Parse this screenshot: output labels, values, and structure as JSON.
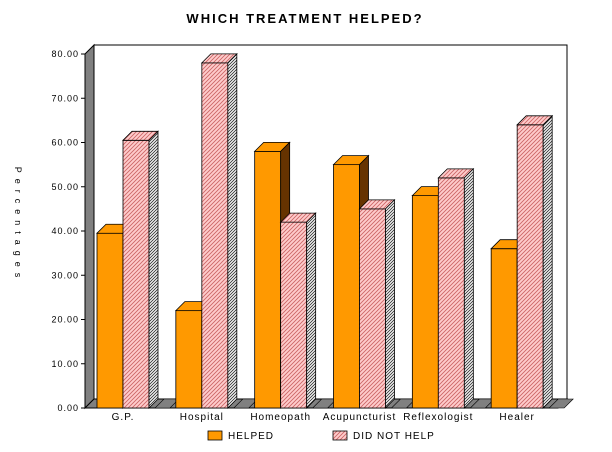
{
  "chart_data": {
    "type": "bar",
    "title": "WHICH TREATMENT HELPED?",
    "ylabel": "Percentages",
    "xlabel": "",
    "categories": [
      "G.P.",
      "Hospital",
      "Homeopath",
      "Acupuncturist",
      "Reflexologist",
      "Healer"
    ],
    "yticks": [
      "0.00",
      "10.00",
      "20.00",
      "30.00",
      "40.00",
      "50.00",
      "60.00",
      "70.00",
      "80.00"
    ],
    "ylim": [
      0,
      80
    ],
    "grid": false,
    "legend_position": "bottom",
    "series": [
      {
        "name": "HELPED",
        "values": [
          39.5,
          22,
          58,
          55,
          48,
          36
        ],
        "color": "#FF9900",
        "side_color": "#663300",
        "pattern": "solid"
      },
      {
        "name": "DID NOT HELP",
        "values": [
          60.5,
          78,
          42,
          45,
          52,
          64
        ],
        "color": "#FFCCCC",
        "stripe_color": "#CC6666",
        "pattern": "diagonal-hatch"
      }
    ],
    "colors": {
      "wall": "#808080",
      "floor": "#808080",
      "outline": "#000000"
    }
  }
}
